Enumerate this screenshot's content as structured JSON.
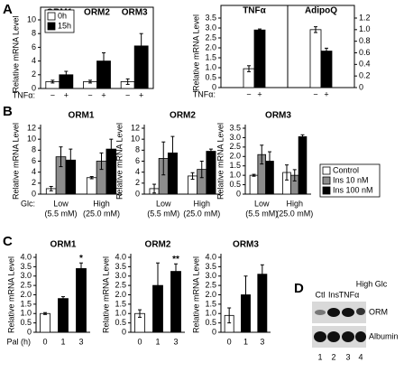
{
  "panel_labels": [
    "A",
    "B",
    "C",
    "D"
  ],
  "chart_data": [
    {
      "type": "bar",
      "categories": [
        "ORM1",
        "ORM2",
        "ORM3"
      ],
      "category_position": "top",
      "group_labels": [
        "−",
        "+"
      ],
      "xlabel": "TNFα:",
      "ylabel": "Relative mRNA Level",
      "series": [
        {
          "name": "0h",
          "color": "#ffffff",
          "values": [
            1.0,
            1.0,
            1.0
          ],
          "errors": [
            0.2,
            0.2,
            0.4
          ]
        },
        {
          "name": "15h",
          "color": "#000000",
          "values": [
            2.0,
            4.0,
            6.2
          ],
          "errors": [
            0.5,
            1.2,
            1.8
          ]
        }
      ],
      "ylim": [
        0,
        10
      ],
      "yticks": [
        0,
        2,
        4,
        6,
        8,
        10
      ],
      "legend": "upper left",
      "frame": true
    },
    {
      "type": "bar_dual",
      "categories": [
        "TNFα",
        "AdipoQ"
      ],
      "group_labels": [
        "−",
        "+"
      ],
      "xlabel": "TNFα:",
      "ylabel": "Relative mRNA Level",
      "colors": [
        "#ffffff",
        "#000000"
      ],
      "axes": [
        "y",
        "y2"
      ],
      "values": [
        [
          0.95,
          2.9
        ],
        [
          1.0,
          0.63
        ]
      ],
      "errors": [
        [
          0.15,
          0.05
        ],
        [
          0.05,
          0.05
        ]
      ],
      "ylim": [
        0,
        3.5
      ],
      "yticks": [
        0,
        0.5,
        {
          "value": 1,
          "label": "1.0"
        },
        1.5,
        {
          "value": 2,
          "label": "2.0"
        },
        2.5,
        {
          "value": 3,
          "label": "3.0"
        },
        3.5
      ],
      "y2lim": [
        0,
        1.2
      ],
      "y2ticks": [
        0,
        0.2,
        0.4,
        0.6,
        0.8,
        {
          "value": 1,
          "label": "1.0"
        },
        1.2
      ],
      "frame": true
    },
    {
      "type": "bar",
      "title": "ORM1",
      "categories": [
        "Low",
        "High"
      ],
      "category_sublabels": [
        "(5.5 mM)",
        "(25.0 mM)"
      ],
      "xlabel": "Glc:",
      "ylabel": "Relative mRNA Level",
      "series": [
        {
          "name": "Control",
          "color": "#ffffff",
          "values": [
            1.0,
            3.0
          ],
          "errors": [
            0.4,
            0.2
          ]
        },
        {
          "name": "Ins 10 nM",
          "color": "#8c8c8c",
          "values": [
            6.8,
            6.0
          ],
          "errors": [
            1.8,
            1.5
          ]
        },
        {
          "name": "Ins 100 nM",
          "color": "#000000",
          "values": [
            6.2,
            8.2
          ],
          "errors": [
            2.0,
            1.8
          ]
        }
      ],
      "ylim": [
        0,
        12
      ],
      "yticks": [
        0,
        2,
        4,
        6,
        8,
        10,
        12
      ]
    },
    {
      "type": "bar",
      "title": "ORM2",
      "categories": [
        "Low",
        "High"
      ],
      "category_sublabels": [
        "(5.5 mM)",
        "(25.0 mM)"
      ],
      "ylabel": "Relative mRNA Level",
      "series": [
        {
          "name": "Control",
          "color": "#ffffff",
          "values": [
            1.0,
            3.3
          ],
          "errors": [
            0.8,
            0.6
          ]
        },
        {
          "name": "Ins 10 nM",
          "color": "#8c8c8c",
          "values": [
            6.5,
            4.5
          ],
          "errors": [
            3.0,
            1.5
          ]
        },
        {
          "name": "Ins 100 nM",
          "color": "#000000",
          "values": [
            7.5,
            7.8
          ],
          "errors": [
            3.0,
            0.4
          ]
        }
      ],
      "ylim": [
        0,
        12
      ],
      "yticks": [
        0,
        2,
        4,
        6,
        8,
        10,
        12
      ]
    },
    {
      "type": "bar",
      "title": "ORM3",
      "categories": [
        "Low",
        "High"
      ],
      "category_sublabels": [
        "(5.5 mM)",
        "(25.0 mM)"
      ],
      "ylabel": "Relative mRNA Level",
      "series": [
        {
          "name": "Control",
          "color": "#ffffff",
          "values": [
            1.0,
            1.15
          ],
          "errors": [
            0.05,
            0.4
          ]
        },
        {
          "name": "Ins 10 nM",
          "color": "#8c8c8c",
          "values": [
            2.1,
            1.0
          ],
          "errors": [
            0.5,
            0.3
          ]
        },
        {
          "name": "Ins 100 nM",
          "color": "#000000",
          "values": [
            1.75,
            3.05
          ],
          "errors": [
            0.5,
            0.1
          ]
        }
      ],
      "ylim": [
        0,
        3.5
      ],
      "yticks": [
        0,
        0.5,
        {
          "value": 1,
          "label": "1.0"
        },
        1.5,
        {
          "value": 2,
          "label": "2.0"
        },
        2.5,
        {
          "value": 3,
          "label": "3.0"
        },
        3.5
      ],
      "legend": "right"
    },
    {
      "type": "bar",
      "title": "ORM1",
      "categories": [
        "0",
        "1",
        "3"
      ],
      "xlabel": "Pal (h)",
      "ylabel": "Relative mRNA Level",
      "values": [
        1.0,
        1.8,
        3.4
      ],
      "errors": [
        0.05,
        0.1,
        0.3
      ],
      "colors": [
        "#ffffff",
        "#000000",
        "#000000"
      ],
      "annotations": [
        null,
        null,
        "*"
      ],
      "ylim": [
        0,
        4
      ],
      "yticks": [
        0,
        0.5,
        {
          "value": 1,
          "label": "1.0"
        },
        1.5,
        {
          "value": 2,
          "label": "2.0"
        },
        2.5,
        {
          "value": 3,
          "label": "3.0"
        },
        3.5,
        {
          "value": 4,
          "label": "4.0"
        }
      ]
    },
    {
      "type": "bar",
      "title": "ORM2",
      "categories": [
        "0",
        "1",
        "3"
      ],
      "ylabel": "Relative mRNA Level",
      "values": [
        1.0,
        2.5,
        3.25
      ],
      "errors": [
        0.2,
        1.2,
        0.4
      ],
      "colors": [
        "#ffffff",
        "#000000",
        "#000000"
      ],
      "annotations": [
        null,
        null,
        "**"
      ],
      "ylim": [
        0,
        4
      ],
      "yticks": [
        0,
        0.5,
        {
          "value": 1,
          "label": "1.0"
        },
        1.5,
        {
          "value": 2,
          "label": "2.0"
        },
        2.5,
        {
          "value": 3,
          "label": "3.0"
        },
        3.5,
        {
          "value": 4,
          "label": "4.0"
        }
      ]
    },
    {
      "type": "bar",
      "title": "ORM3",
      "categories": [
        "0",
        "1",
        "3"
      ],
      "ylabel": "Relative mRNA Level",
      "values": [
        0.9,
        2.0,
        3.1
      ],
      "errors": [
        0.4,
        1.0,
        0.5
      ],
      "colors": [
        "#ffffff",
        "#000000",
        "#000000"
      ],
      "ylim": [
        0,
        4
      ],
      "yticks": [
        0,
        0.5,
        {
          "value": 1,
          "label": "1.0"
        },
        1.5,
        {
          "value": 2,
          "label": "2.0"
        },
        2.5,
        {
          "value": 3,
          "label": "3.0"
        },
        3.5,
        {
          "value": 4,
          "label": "4.0"
        }
      ]
    }
  ],
  "blot": {
    "lanes": [
      "Ctl",
      "Ins",
      "TNFα",
      "High Glc"
    ],
    "rows": [
      "ORM",
      "Albumin"
    ],
    "lane_numbers": [
      "1",
      "2",
      "3",
      "4"
    ]
  }
}
